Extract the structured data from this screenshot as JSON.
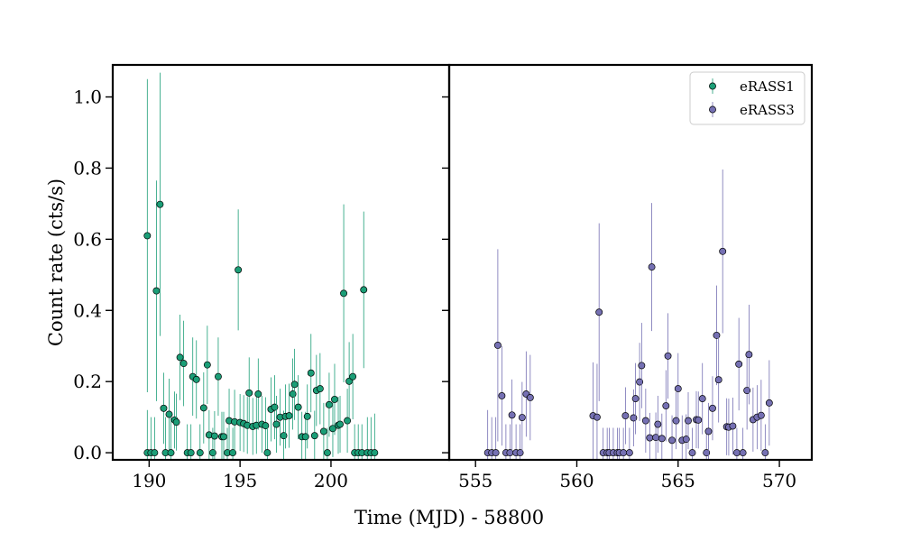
{
  "chart_data": {
    "type": "scatter",
    "xlabel": "Time (MJD) - 58800",
    "ylabel": "Count rate (cts/s)",
    "ylim": [
      -0.02,
      1.09
    ],
    "yticks": [
      "0.0",
      "0.2",
      "0.4",
      "0.6",
      "0.8",
      "1.0"
    ],
    "legend_position": "top-right",
    "panels": [
      {
        "name": "left",
        "xlim": [
          188.0,
          206.5
        ],
        "xticks": [
          "190",
          "195",
          "200"
        ]
      },
      {
        "name": "right",
        "xlim": [
          553.7,
          571.6
        ],
        "xticks": [
          "555",
          "560",
          "565",
          "570"
        ]
      }
    ],
    "series": [
      {
        "name": "eRASS1",
        "color": "#1b9e77",
        "panel": 0,
        "points": [
          {
            "x": 189.9,
            "y": 0.0,
            "err": 0.12
          },
          {
            "x": 189.9,
            "y": 0.61,
            "err": 0.44
          },
          {
            "x": 190.1,
            "y": 0.0,
            "err": 0.1
          },
          {
            "x": 190.3,
            "y": 0.0,
            "err": 0.1
          },
          {
            "x": 190.4,
            "y": 0.455,
            "err": 0.31
          },
          {
            "x": 190.6,
            "y": 0.698,
            "err": 0.37
          },
          {
            "x": 190.8,
            "y": 0.125,
            "err": 0.1
          },
          {
            "x": 190.9,
            "y": 0.0,
            "err": 0.1
          },
          {
            "x": 191.1,
            "y": 0.108,
            "err": 0.1
          },
          {
            "x": 191.2,
            "y": 0.0,
            "err": 0.1
          },
          {
            "x": 191.4,
            "y": 0.092,
            "err": 0.08
          },
          {
            "x": 191.5,
            "y": 0.086,
            "err": 0.08
          },
          {
            "x": 191.7,
            "y": 0.268,
            "err": 0.12
          },
          {
            "x": 191.9,
            "y": 0.251,
            "err": 0.12
          },
          {
            "x": 192.1,
            "y": 0.0,
            "err": 0.08
          },
          {
            "x": 192.3,
            "y": 0.0,
            "err": 0.08
          },
          {
            "x": 192.4,
            "y": 0.214,
            "err": 0.11
          },
          {
            "x": 192.6,
            "y": 0.206,
            "err": 0.11
          },
          {
            "x": 192.8,
            "y": 0.0,
            "err": 0.08
          },
          {
            "x": 193.0,
            "y": 0.126,
            "err": 0.1
          },
          {
            "x": 193.2,
            "y": 0.247,
            "err": 0.11
          },
          {
            "x": 193.3,
            "y": 0.05,
            "err": 0.07
          },
          {
            "x": 193.5,
            "y": 0.0,
            "err": 0.07
          },
          {
            "x": 193.6,
            "y": 0.047,
            "err": 0.07
          },
          {
            "x": 193.8,
            "y": 0.214,
            "err": 0.11
          },
          {
            "x": 194.0,
            "y": 0.045,
            "err": 0.07
          },
          {
            "x": 194.1,
            "y": 0.045,
            "err": 0.07
          },
          {
            "x": 194.3,
            "y": 0.0,
            "err": 0.07
          },
          {
            "x": 194.4,
            "y": 0.09,
            "err": 0.09
          },
          {
            "x": 194.6,
            "y": 0.0,
            "err": 0.07
          },
          {
            "x": 194.7,
            "y": 0.087,
            "err": 0.09
          },
          {
            "x": 194.9,
            "y": 0.514,
            "err": 0.17
          },
          {
            "x": 195.0,
            "y": 0.085,
            "err": 0.08
          },
          {
            "x": 195.2,
            "y": 0.082,
            "err": 0.08
          },
          {
            "x": 195.4,
            "y": 0.077,
            "err": 0.08
          },
          {
            "x": 195.5,
            "y": 0.168,
            "err": 0.1
          },
          {
            "x": 195.7,
            "y": 0.074,
            "err": 0.08
          },
          {
            "x": 195.9,
            "y": 0.077,
            "err": 0.08
          },
          {
            "x": 196.0,
            "y": 0.165,
            "err": 0.1
          },
          {
            "x": 196.2,
            "y": 0.08,
            "err": 0.08
          },
          {
            "x": 196.4,
            "y": 0.076,
            "err": 0.08
          },
          {
            "x": 196.5,
            "y": 0.0,
            "err": 0.07
          },
          {
            "x": 196.7,
            "y": 0.122,
            "err": 0.09
          },
          {
            "x": 196.9,
            "y": 0.128,
            "err": 0.09
          },
          {
            "x": 197.0,
            "y": 0.08,
            "err": 0.08
          },
          {
            "x": 197.2,
            "y": 0.1,
            "err": 0.08
          },
          {
            "x": 197.4,
            "y": 0.048,
            "err": 0.07
          },
          {
            "x": 197.5,
            "y": 0.102,
            "err": 0.09
          },
          {
            "x": 197.7,
            "y": 0.104,
            "err": 0.09
          },
          {
            "x": 197.9,
            "y": 0.165,
            "err": 0.1
          },
          {
            "x": 198.0,
            "y": 0.192,
            "err": 0.1
          },
          {
            "x": 198.2,
            "y": 0.128,
            "err": 0.09
          },
          {
            "x": 198.4,
            "y": 0.045,
            "err": 0.07
          },
          {
            "x": 198.6,
            "y": 0.045,
            "err": 0.07
          },
          {
            "x": 198.7,
            "y": 0.102,
            "err": 0.09
          },
          {
            "x": 198.9,
            "y": 0.224,
            "err": 0.11
          },
          {
            "x": 199.1,
            "y": 0.048,
            "err": 0.07
          },
          {
            "x": 199.2,
            "y": 0.175,
            "err": 0.1
          },
          {
            "x": 199.4,
            "y": 0.18,
            "err": 0.1
          },
          {
            "x": 199.6,
            "y": 0.06,
            "err": 0.08
          },
          {
            "x": 199.8,
            "y": 0.0,
            "err": 0.07
          },
          {
            "x": 199.9,
            "y": 0.135,
            "err": 0.09
          },
          {
            "x": 200.1,
            "y": 0.068,
            "err": 0.08
          },
          {
            "x": 200.2,
            "y": 0.15,
            "err": 0.1
          },
          {
            "x": 200.4,
            "y": 0.077,
            "err": 0.08
          },
          {
            "x": 200.5,
            "y": 0.08,
            "err": 0.08
          },
          {
            "x": 200.7,
            "y": 0.448,
            "err": 0.25
          },
          {
            "x": 200.9,
            "y": 0.09,
            "err": 0.09
          },
          {
            "x": 201.0,
            "y": 0.201,
            "err": 0.11
          },
          {
            "x": 201.2,
            "y": 0.214,
            "err": 0.12
          },
          {
            "x": 201.3,
            "y": 0.0,
            "err": 0.08
          },
          {
            "x": 201.5,
            "y": 0.0,
            "err": 0.08
          },
          {
            "x": 201.7,
            "y": 0.0,
            "err": 0.08
          },
          {
            "x": 201.8,
            "y": 0.458,
            "err": 0.22
          },
          {
            "x": 202.0,
            "y": 0.0,
            "err": 0.1
          },
          {
            "x": 202.2,
            "y": 0.0,
            "err": 0.1
          },
          {
            "x": 202.4,
            "y": 0.0,
            "err": 0.11
          }
        ]
      },
      {
        "name": "eRASS3",
        "color": "#7570b3",
        "panel": 1,
        "points": [
          {
            "x": 555.6,
            "y": 0.0,
            "err": 0.12
          },
          {
            "x": 555.8,
            "y": 0.0,
            "err": 0.1
          },
          {
            "x": 556.0,
            "y": 0.0,
            "err": 0.1
          },
          {
            "x": 556.1,
            "y": 0.302,
            "err": 0.27
          },
          {
            "x": 556.3,
            "y": 0.16,
            "err": 0.14
          },
          {
            "x": 556.5,
            "y": 0.0,
            "err": 0.08
          },
          {
            "x": 556.7,
            "y": 0.0,
            "err": 0.08
          },
          {
            "x": 556.8,
            "y": 0.106,
            "err": 0.1
          },
          {
            "x": 557.0,
            "y": 0.0,
            "err": 0.08
          },
          {
            "x": 557.2,
            "y": 0.0,
            "err": 0.08
          },
          {
            "x": 557.3,
            "y": 0.099,
            "err": 0.1
          },
          {
            "x": 557.5,
            "y": 0.165,
            "err": 0.12
          },
          {
            "x": 557.7,
            "y": 0.155,
            "err": 0.12
          },
          {
            "x": 560.8,
            "y": 0.104,
            "err": 0.15
          },
          {
            "x": 561.0,
            "y": 0.1,
            "err": 0.15
          },
          {
            "x": 561.1,
            "y": 0.395,
            "err": 0.25
          },
          {
            "x": 561.3,
            "y": 0.0,
            "err": 0.07
          },
          {
            "x": 561.5,
            "y": 0.0,
            "err": 0.07
          },
          {
            "x": 561.6,
            "y": 0.0,
            "err": 0.07
          },
          {
            "x": 561.8,
            "y": 0.0,
            "err": 0.07
          },
          {
            "x": 562.0,
            "y": 0.0,
            "err": 0.07
          },
          {
            "x": 562.1,
            "y": 0.0,
            "err": 0.07
          },
          {
            "x": 562.3,
            "y": 0.0,
            "err": 0.07
          },
          {
            "x": 562.4,
            "y": 0.104,
            "err": 0.08
          },
          {
            "x": 562.6,
            "y": 0.0,
            "err": 0.07
          },
          {
            "x": 562.8,
            "y": 0.098,
            "err": 0.08
          },
          {
            "x": 562.9,
            "y": 0.152,
            "err": 0.1
          },
          {
            "x": 563.1,
            "y": 0.199,
            "err": 0.11
          },
          {
            "x": 563.2,
            "y": 0.245,
            "err": 0.12
          },
          {
            "x": 563.4,
            "y": 0.09,
            "err": 0.09
          },
          {
            "x": 563.6,
            "y": 0.042,
            "err": 0.07
          },
          {
            "x": 563.7,
            "y": 0.522,
            "err": 0.18
          },
          {
            "x": 563.9,
            "y": 0.043,
            "err": 0.07
          },
          {
            "x": 564.0,
            "y": 0.08,
            "err": 0.08
          },
          {
            "x": 564.2,
            "y": 0.04,
            "err": 0.07
          },
          {
            "x": 564.4,
            "y": 0.132,
            "err": 0.1
          },
          {
            "x": 564.5,
            "y": 0.272,
            "err": 0.12
          },
          {
            "x": 564.7,
            "y": 0.035,
            "err": 0.07
          },
          {
            "x": 564.9,
            "y": 0.09,
            "err": 0.08
          },
          {
            "x": 565.0,
            "y": 0.18,
            "err": 0.1
          },
          {
            "x": 565.2,
            "y": 0.035,
            "err": 0.07
          },
          {
            "x": 565.4,
            "y": 0.038,
            "err": 0.07
          },
          {
            "x": 565.5,
            "y": 0.09,
            "err": 0.08
          },
          {
            "x": 565.7,
            "y": 0.0,
            "err": 0.07
          },
          {
            "x": 565.9,
            "y": 0.093,
            "err": 0.08
          },
          {
            "x": 566.0,
            "y": 0.092,
            "err": 0.08
          },
          {
            "x": 566.2,
            "y": 0.152,
            "err": 0.1
          },
          {
            "x": 566.4,
            "y": 0.0,
            "err": 0.07
          },
          {
            "x": 566.5,
            "y": 0.06,
            "err": 0.08
          },
          {
            "x": 566.7,
            "y": 0.125,
            "err": 0.09
          },
          {
            "x": 566.9,
            "y": 0.33,
            "err": 0.14
          },
          {
            "x": 567.0,
            "y": 0.205,
            "err": 0.12
          },
          {
            "x": 567.2,
            "y": 0.566,
            "err": 0.23
          },
          {
            "x": 567.4,
            "y": 0.073,
            "err": 0.08
          },
          {
            "x": 567.5,
            "y": 0.072,
            "err": 0.08
          },
          {
            "x": 567.7,
            "y": 0.075,
            "err": 0.08
          },
          {
            "x": 567.9,
            "y": 0.0,
            "err": 0.07
          },
          {
            "x": 568.0,
            "y": 0.249,
            "err": 0.13
          },
          {
            "x": 568.2,
            "y": 0.0,
            "err": 0.07
          },
          {
            "x": 568.4,
            "y": 0.175,
            "err": 0.11
          },
          {
            "x": 568.5,
            "y": 0.276,
            "err": 0.14
          },
          {
            "x": 568.7,
            "y": 0.093,
            "err": 0.09
          },
          {
            "x": 568.9,
            "y": 0.1,
            "err": 0.09
          },
          {
            "x": 569.1,
            "y": 0.105,
            "err": 0.1
          },
          {
            "x": 569.3,
            "y": 0.0,
            "err": 0.08
          },
          {
            "x": 569.5,
            "y": 0.14,
            "err": 0.12
          }
        ]
      }
    ]
  }
}
